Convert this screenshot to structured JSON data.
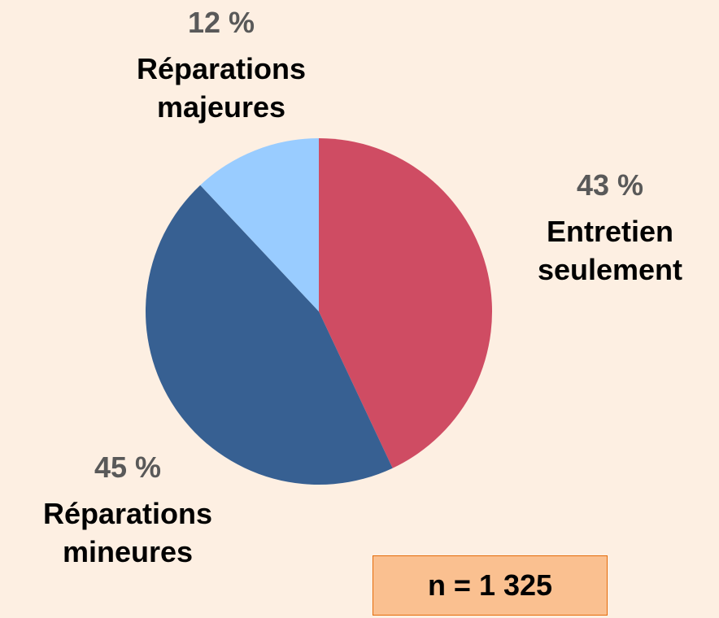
{
  "chart_data": {
    "type": "pie",
    "categories": [
      "Entretien seulement",
      "Réparations mineures",
      "Réparations majeures"
    ],
    "values": [
      43,
      45,
      12
    ],
    "value_labels": [
      "43 %",
      "45 %",
      "12 %"
    ],
    "colors": [
      "#cf4c63",
      "#376092",
      "#99ccff"
    ],
    "annotation": "n = 1 325"
  }
}
